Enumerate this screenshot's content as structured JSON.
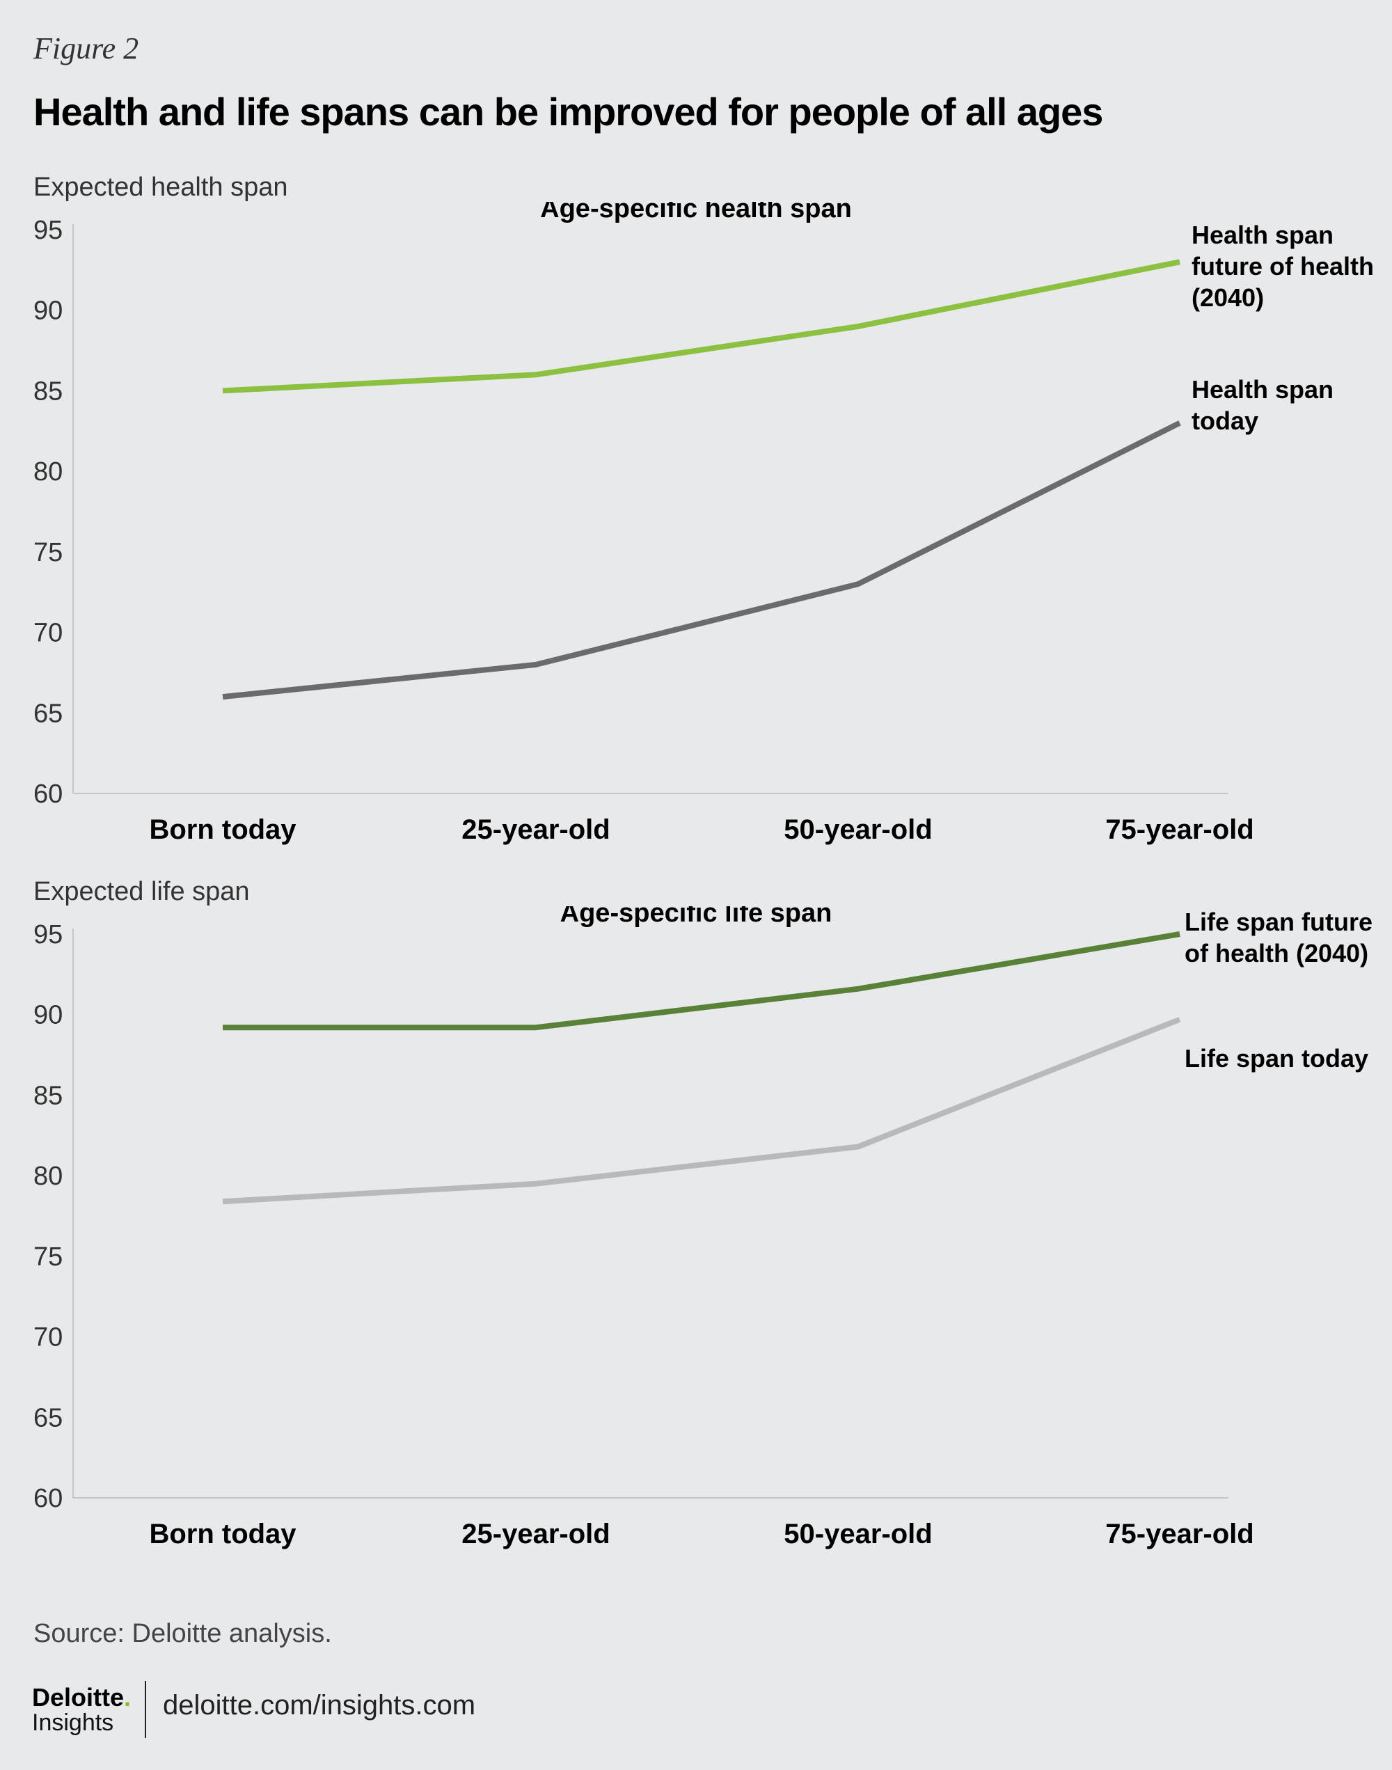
{
  "header": {
    "figure_label": "Figure 2",
    "title": "Health and life spans can be improved for people of all ages"
  },
  "chart_data": [
    {
      "type": "line",
      "title": "Age-specific health span",
      "ylabel": "Expected health span",
      "xlabel": "",
      "categories": [
        "Born today",
        "25-year-old",
        "50-year-old",
        "75-year-old"
      ],
      "ylim": [
        60,
        95
      ],
      "yticks": [
        95,
        90,
        85,
        80,
        75,
        70,
        65,
        60
      ],
      "grid": false,
      "series": [
        {
          "name": "Health span future of health (2040)",
          "label_lines": [
            "Health span",
            "future of health",
            "(2040)"
          ],
          "values": [
            85,
            86,
            89,
            93
          ],
          "color": "#8cc041"
        },
        {
          "name": "Health span today",
          "label_lines": [
            "Health span",
            "today"
          ],
          "values": [
            66,
            68,
            73,
            83
          ],
          "color": "#6b6b6d"
        }
      ]
    },
    {
      "type": "line",
      "title": "Age-specific life span",
      "ylabel": "Expected life span",
      "xlabel": "",
      "categories": [
        "Born today",
        "25-year-old",
        "50-year-old",
        "75-year-old"
      ],
      "ylim": [
        60,
        95
      ],
      "yticks": [
        95,
        90,
        85,
        80,
        75,
        70,
        65,
        60
      ],
      "grid": false,
      "series": [
        {
          "name": "Life span future of health (2040)",
          "label_lines": [
            "Life span future",
            "of health (2040)"
          ],
          "values": [
            89.2,
            89.2,
            91.6,
            95
          ],
          "color": "#5a8138"
        },
        {
          "name": "Life span today",
          "label_lines": [
            "Life span today"
          ],
          "values": [
            78.4,
            79.5,
            81.8,
            89.7
          ],
          "color": "#b8b9bb"
        }
      ]
    }
  ],
  "footer": {
    "source": "Source: Deloitte analysis.",
    "brand": "Deloitte",
    "brand_dot": ".",
    "brand_sub": "Insights",
    "url": "deloitte.com/insights.com"
  }
}
